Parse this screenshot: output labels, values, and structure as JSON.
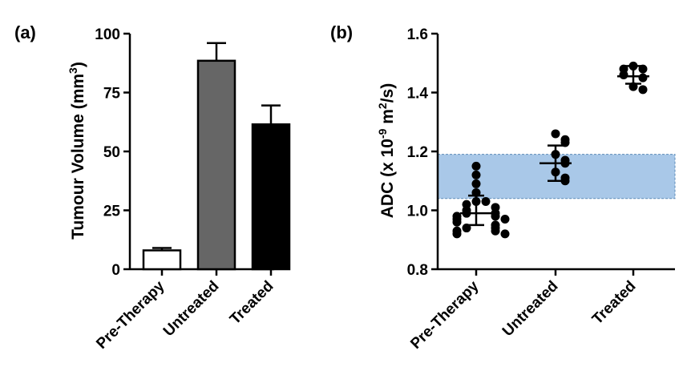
{
  "chart_data": [
    {
      "panel": "(a)",
      "type": "bar",
      "categories": [
        "Pre-Therapy",
        "Untreated",
        "Treated"
      ],
      "values": [
        8,
        88.5,
        61.5
      ],
      "errors": [
        1,
        7.5,
        8
      ],
      "bar_colors": [
        "#ffffff",
        "#666666",
        "#000000"
      ],
      "ylabel": "Tumour Volume (mm",
      "ylabel_sup": "3",
      "ylabel_end": ")",
      "ylim": [
        0,
        100
      ],
      "yticks": [
        0,
        25,
        50,
        75,
        100
      ]
    },
    {
      "panel": "(b)",
      "type": "scatter",
      "categories": [
        "Pre-Therapy",
        "Untreated",
        "Treated"
      ],
      "series": [
        {
          "name": "Pre-Therapy",
          "values": [
            1.15,
            1.12,
            1.09,
            1.06,
            1.03,
            1.03,
            1.02,
            1.01,
            1.0,
            0.99,
            0.99,
            0.98,
            0.98,
            0.97,
            0.97,
            0.96,
            0.95,
            0.94,
            0.94,
            0.93,
            0.93,
            0.92,
            0.92
          ],
          "mean": 0.99,
          "sd_range": [
            0.95,
            1.05
          ]
        },
        {
          "name": "Untreated",
          "values": [
            1.26,
            1.24,
            1.23,
            1.19,
            1.17,
            1.16,
            1.13,
            1.11,
            1.1
          ],
          "mean": 1.16,
          "sd_range": [
            1.1,
            1.22
          ]
        },
        {
          "name": "Treated",
          "values": [
            1.49,
            1.48,
            1.48,
            1.46,
            1.45,
            1.42,
            1.41
          ],
          "mean": 1.455,
          "sd_range": [
            1.43,
            1.49
          ]
        }
      ],
      "band": {
        "from": 1.04,
        "to": 1.19,
        "color": "#a9c8e8"
      },
      "ylabel": "ADC (x 10",
      "ylabel_sup1": "-9",
      "ylabel_mid": " m",
      "ylabel_sup2": "2",
      "ylabel_end": "/s)",
      "ylim": [
        0.8,
        1.6
      ],
      "yticks": [
        "0.8",
        "1.0",
        "1.2",
        "1.4",
        "1.6"
      ]
    }
  ]
}
